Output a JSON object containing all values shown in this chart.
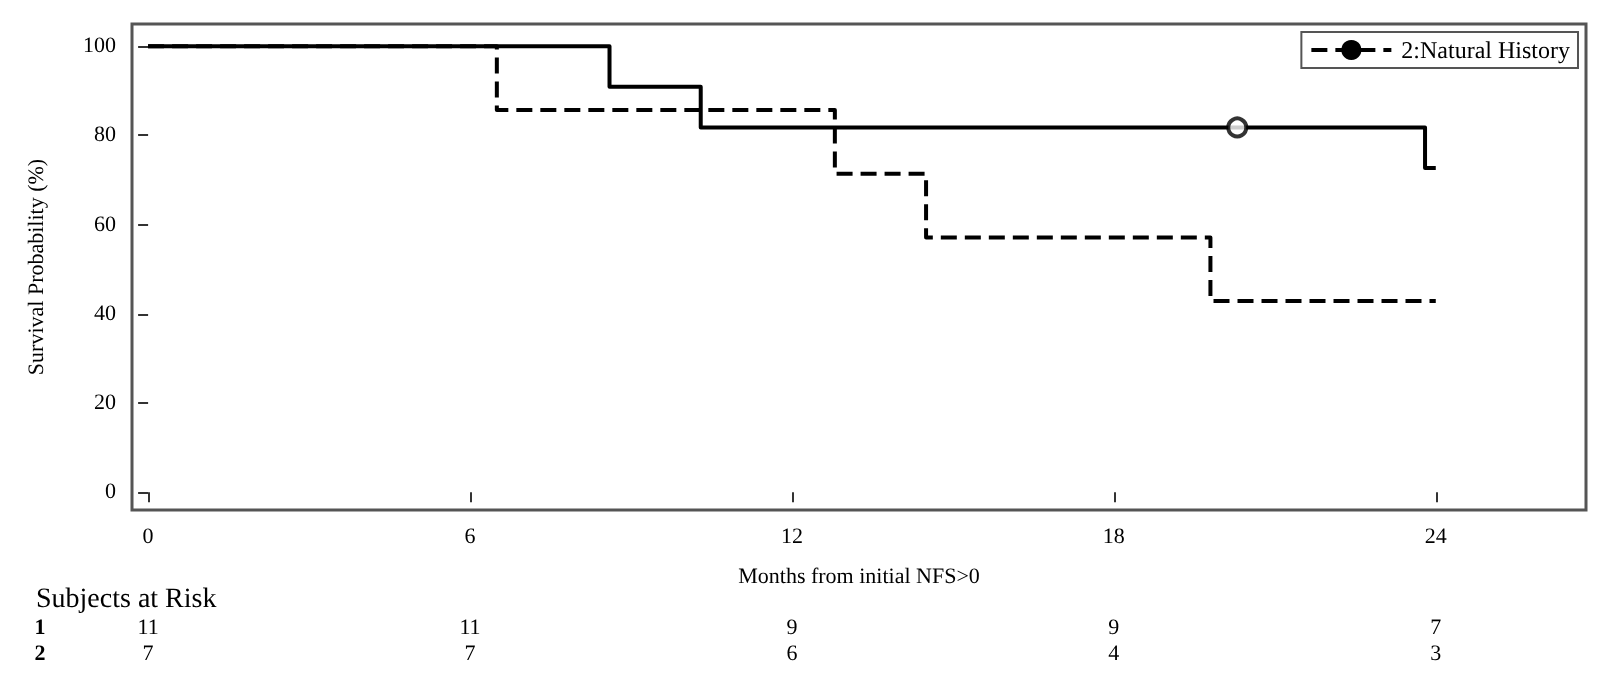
{
  "chart_data": {
    "type": "step",
    "xlabel": "Months from initial NFS>0",
    "ylabel": "Survival Probability (%)",
    "xlim": [
      -0.3,
      26.8
    ],
    "xticks": [
      0,
      6,
      12,
      18,
      24
    ],
    "ylim": [
      -4,
      105
    ],
    "yticks": [
      0,
      20,
      40,
      60,
      80,
      100
    ],
    "grid": false,
    "legend": "top right",
    "marker": "none",
    "series": [
      {
        "color": "#000000",
        "line_style": "solid",
        "x": [
          0,
          8.6,
          10.3,
          23.8,
          24
        ],
        "values": [
          100,
          90.9,
          81.8,
          72.7,
          72.7
        ]
      },
      {
        "name": "2:Natural History",
        "color": "#000000",
        "line_style": "dashed",
        "x": [
          0,
          6.5,
          12.8,
          14.5,
          19.8,
          24
        ],
        "values": [
          100,
          85.7,
          71.4,
          57.1,
          42.9,
          42.9
        ]
      },
      {
        "type": "scatter",
        "marker": "circle",
        "color": "#000000",
        "x": [
          20.3
        ],
        "values": [
          81.8
        ]
      }
    ],
    "annotations": [
      "Subjects at Risk",
      "1",
      "11",
      "11",
      "9",
      "9",
      "7",
      "2",
      "7",
      "7",
      "6",
      "4",
      "3"
    ]
  }
}
